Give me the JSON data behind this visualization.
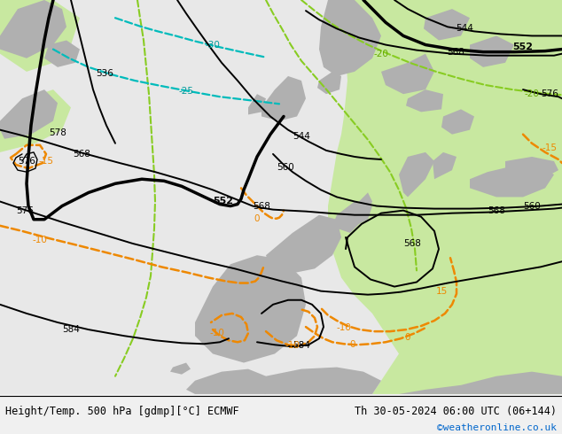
{
  "title_left": "Height/Temp. 500 hPa [gdmp][°C] ECMWF",
  "title_right": "Th 30-05-2024 06:00 UTC (06+144)",
  "credit": "©weatheronline.co.uk",
  "credit_color": "#0066cc",
  "bg_color": "#f0f0f0",
  "map_bg_green": "#c8e8a0",
  "map_bg_white": "#e8e8e8",
  "land_gray": "#b0b0b0",
  "figsize": [
    6.34,
    4.9
  ],
  "dpi": 100,
  "bottom_bar_color": "#ffffff",
  "black": "#000000",
  "green": "#88cc22",
  "cyan": "#00bbbb",
  "orange": "#ee8800",
  "label_green": "#66aa00",
  "label_cyan": "#009999",
  "label_orange": "#ee8800"
}
